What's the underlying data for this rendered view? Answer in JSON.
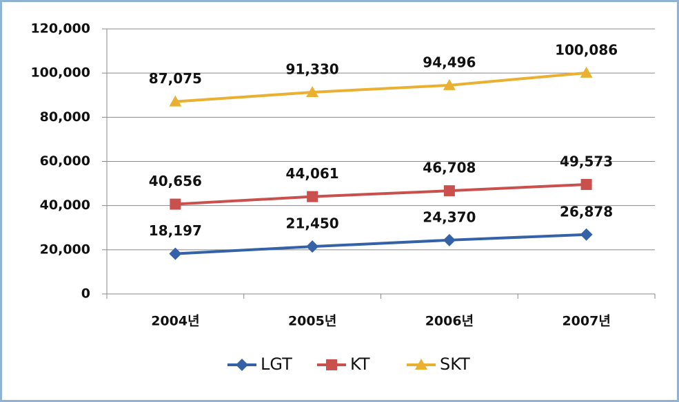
{
  "chart_data": {
    "type": "line",
    "categories": [
      "2004년",
      "2005년",
      "2006년",
      "2007년"
    ],
    "series": [
      {
        "name": "LGT",
        "color": "#3562a6",
        "marker": "diamond",
        "values": [
          18197,
          21450,
          24370,
          26878
        ],
        "value_labels": [
          "18,197",
          "21,450",
          "24,370",
          "26,878"
        ]
      },
      {
        "name": "KT",
        "color": "#c9504c",
        "marker": "square",
        "values": [
          40656,
          44061,
          46708,
          49573
        ],
        "value_labels": [
          "40,656",
          "44,061",
          "46,708",
          "49,573"
        ]
      },
      {
        "name": "SKT",
        "color": "#eab032",
        "marker": "triangle",
        "values": [
          87075,
          91330,
          94496,
          100086
        ],
        "value_labels": [
          "87,075",
          "91,330",
          "94,496",
          "100,086"
        ]
      }
    ],
    "ylim": [
      0,
      120000
    ],
    "yticks": [
      0,
      {
        "value": 20000,
        "label": "20,000"
      },
      {
        "value": 40000,
        "label": "40,000"
      },
      {
        "value": 60000,
        "label": "60,000"
      },
      {
        "value": 80000,
        "label": "80,000"
      },
      {
        "value": 100000,
        "label": "100,000"
      },
      {
        "value": 120000,
        "label": "120,000"
      }
    ],
    "grid": true,
    "legend": "bottom"
  }
}
